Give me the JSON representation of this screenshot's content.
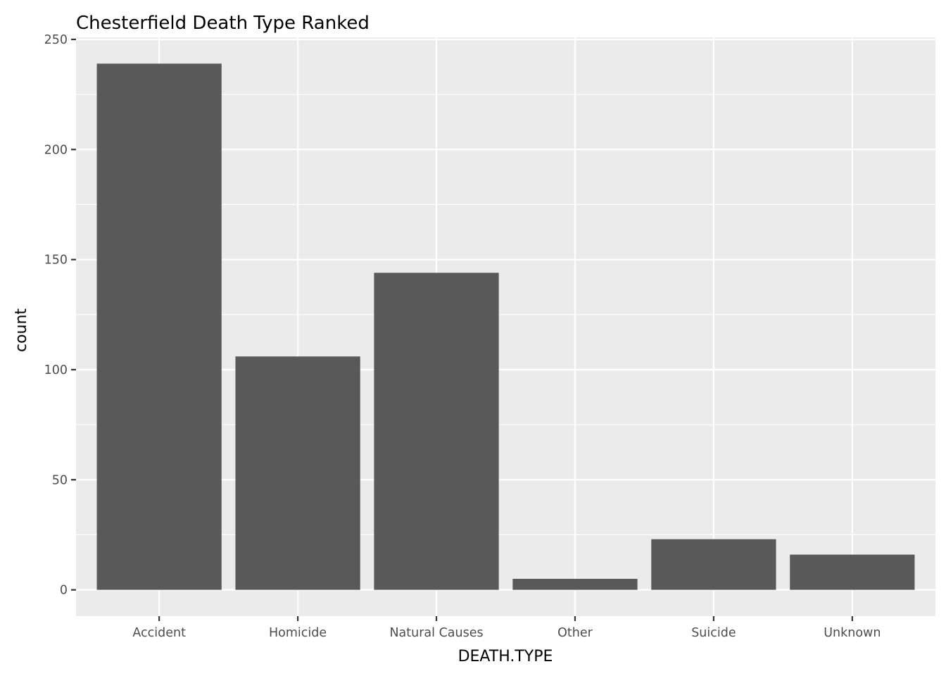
{
  "chart_data": {
    "type": "bar",
    "title": "Chesterfield Death Type Ranked",
    "xlabel": "DEATH.TYPE",
    "ylabel": "count",
    "categories": [
      "Accident",
      "Homicide",
      "Natural Causes",
      "Other",
      "Suicide",
      "Unknown"
    ],
    "values": [
      239,
      106,
      144,
      5,
      23,
      16
    ],
    "ylim": [
      -11.95,
      250.95
    ],
    "yticks": [
      0,
      50,
      100,
      150,
      200,
      250
    ],
    "ytick_labels": [
      "0",
      "50",
      "100",
      "150",
      "200",
      "250"
    ],
    "grid": true,
    "legend": "none",
    "colors": {
      "bar": "#595959",
      "panel": "#ebebeb",
      "grid": "#ffffff"
    }
  }
}
